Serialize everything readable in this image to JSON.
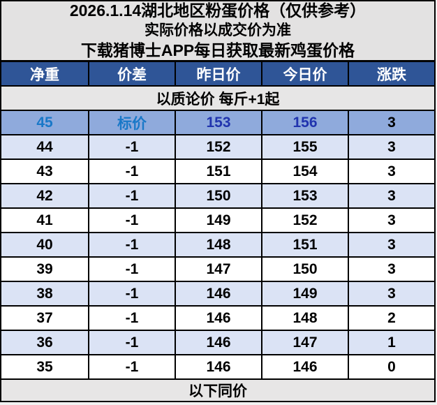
{
  "header": {
    "line1": "2026.1.14湖北地区粉蛋价格（仅供参考）",
    "line2": "实际价格以成交价为准",
    "line3": "下载猪博士APP每日获取最新鸡蛋价格"
  },
  "table": {
    "columns": [
      "净重",
      "价差",
      "昨日价",
      "今日价",
      "涨跌"
    ],
    "subheader": "以质论价 每斤+1起",
    "footer": "以下同价",
    "rows": [
      {
        "cells": [
          "45",
          "标价",
          "153",
          "156",
          "3"
        ],
        "highlight": true
      },
      {
        "cells": [
          "44",
          "-1",
          "152",
          "155",
          "3"
        ],
        "highlight": false
      },
      {
        "cells": [
          "43",
          "-1",
          "151",
          "154",
          "3"
        ],
        "highlight": false
      },
      {
        "cells": [
          "42",
          "-1",
          "150",
          "153",
          "3"
        ],
        "highlight": false
      },
      {
        "cells": [
          "41",
          "-1",
          "149",
          "152",
          "3"
        ],
        "highlight": false
      },
      {
        "cells": [
          "40",
          "-1",
          "148",
          "151",
          "3"
        ],
        "highlight": false
      },
      {
        "cells": [
          "39",
          "-1",
          "147",
          "150",
          "3"
        ],
        "highlight": false
      },
      {
        "cells": [
          "38",
          "-1",
          "146",
          "149",
          "3"
        ],
        "highlight": false
      },
      {
        "cells": [
          "37",
          "-1",
          "146",
          "148",
          "2"
        ],
        "highlight": false
      },
      {
        "cells": [
          "36",
          "-1",
          "146",
          "147",
          "1"
        ],
        "highlight": false
      },
      {
        "cells": [
          "35",
          "-1",
          "146",
          "146",
          "0"
        ],
        "highlight": false
      }
    ]
  },
  "colors": {
    "header_blue": "#2f5597",
    "highlight_row_bg": "#8faadc",
    "alt_row_bg": "#dbe3f5",
    "title_block_bg": "#e3e2e2",
    "merged_row_bg": "#e7e6e6",
    "highlight_label_text": "#1978c8",
    "highlight_price_text": "#2134ae",
    "border": "#000000"
  }
}
